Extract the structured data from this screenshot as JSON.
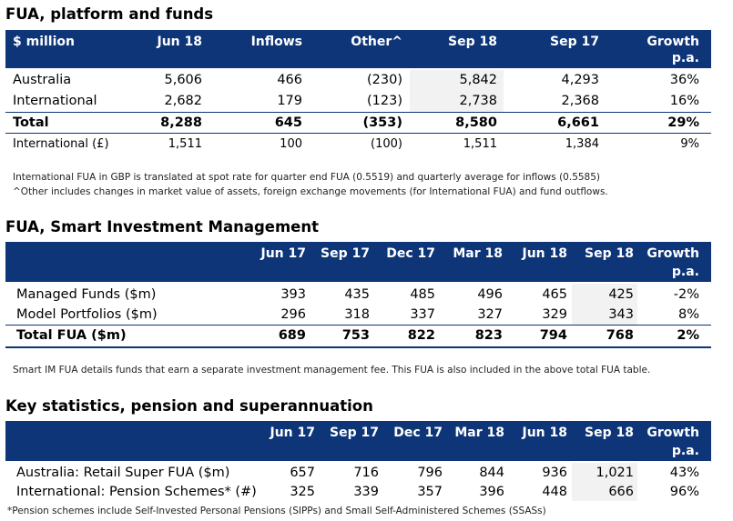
{
  "section1": {
    "title": "FUA, platform and funds",
    "headers": [
      "$ million",
      "Jun 18",
      "Inflows",
      "Other^",
      "Sep 18",
      "Sep 17",
      "Growth"
    ],
    "growth_sub": "p.a.",
    "rows": [
      [
        "Australia",
        "5,606",
        "466",
        "(230)",
        "5,842",
        "4,293",
        "36%"
      ],
      [
        "International",
        "2,682",
        "179",
        "(123)",
        "2,738",
        "2,368",
        "16%"
      ],
      [
        "Total",
        "8,288",
        "645",
        "(353)",
        "8,580",
        "6,661",
        "29%"
      ],
      [
        "International (£)",
        "1,511",
        "100",
        "(100)",
        "1,511",
        "1,384",
        "9%"
      ]
    ],
    "notes": [
      "International FUA in GBP is translated at spot rate for quarter end FUA (0.5519) and quarterly average for inflows (0.5585)",
      "^Other includes changes in market value of assets, foreign exchange movements (for International FUA) and fund outflows."
    ]
  },
  "section2": {
    "title": "FUA, Smart Investment Management",
    "headers": [
      "",
      "Jun 17",
      "Sep 17",
      "Dec 17",
      "Mar 18",
      "Jun 18",
      "Sep 18",
      "Growth"
    ],
    "growth_sub": "p.a.",
    "rows": [
      [
        "Managed Funds ($m)",
        "393",
        "435",
        "485",
        "496",
        "465",
        "425",
        "-2%"
      ],
      [
        "Model Portfolios ($m)",
        "296",
        "318",
        "337",
        "327",
        "329",
        "343",
        "8%"
      ],
      [
        "Total FUA ($m)",
        "689",
        "753",
        "822",
        "823",
        "794",
        "768",
        "2%"
      ]
    ],
    "note": "Smart IM FUA details funds that earn a separate investment management fee. This FUA is also included in the above total FUA table."
  },
  "section3": {
    "title": "Key statistics, pension and superannuation",
    "headers": [
      "",
      "Jun 17",
      "Sep 17",
      "Dec 17",
      "Mar 18",
      "Jun 18",
      "Sep 18",
      "Growth"
    ],
    "growth_sub": "p.a.",
    "rows": [
      [
        "Australia: Retail Super FUA ($m)",
        "657",
        "716",
        "796",
        "844",
        "936",
        "1,021",
        "43%"
      ],
      [
        "International: Pension Schemes* (#)",
        "325",
        "339",
        "357",
        "396",
        "448",
        "666",
        "96%"
      ]
    ],
    "note": "*Pension schemes include Self-Invested Personal Pensions (SIPPs) and Small Self-Administered Schemes (SSASs)"
  },
  "colors": {
    "header_bg": "#0d3578",
    "header_text": "#ffffff",
    "highlight": "#f2f2f2"
  }
}
